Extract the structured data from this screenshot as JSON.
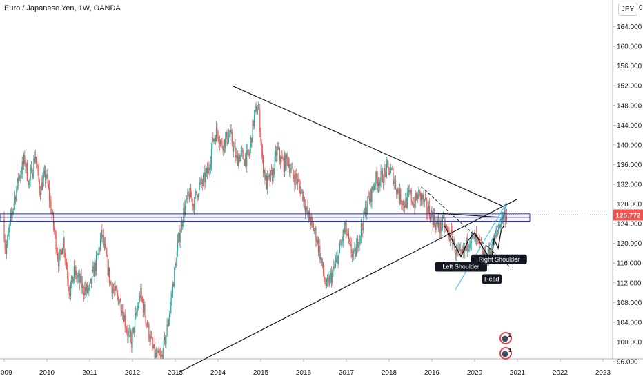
{
  "title": "Euro / Japanese Yen, 1W, OANDA",
  "currency": "JPY",
  "top_tick_fragment": "0",
  "price_label": "125.772",
  "annotation_counts": [
    "2",
    "1"
  ],
  "colors": {
    "up": "#26a69a",
    "down": "#ef5350",
    "zone": "#2a2fbd",
    "trendline": "#131722",
    "pattern_line": "#29b6f6",
    "price_label_bg": "#ef5350"
  },
  "chart_data": {
    "type": "candlestick",
    "title": "Euro / Japanese Yen, 1W, OANDA",
    "xlabel": "",
    "ylabel": "",
    "x_ticks": [
      "009",
      "2010",
      "2011",
      "2012",
      "2013",
      "2014",
      "2015",
      "2016",
      "2017",
      "2018",
      "2019",
      "2020",
      "2021",
      "2022",
      "2023"
    ],
    "y_ticks": [
      "96.000",
      "100.000",
      "104.000",
      "108.000",
      "112.000",
      "116.000",
      "120.000",
      "124.000",
      "128.000",
      "132.000",
      "136.000",
      "140.000",
      "144.000",
      "148.000",
      "152.000",
      "156.000",
      "160.000",
      "164.000"
    ],
    "ylim": [
      96,
      169
    ],
    "last_price": 125.772,
    "price_path": [
      [
        2009.0,
        125
      ],
      [
        2009.05,
        118
      ],
      [
        2009.2,
        126
      ],
      [
        2009.35,
        133
      ],
      [
        2009.5,
        137
      ],
      [
        2009.6,
        132
      ],
      [
        2009.75,
        138
      ],
      [
        2009.85,
        131
      ],
      [
        2010.0,
        134
      ],
      [
        2010.1,
        128
      ],
      [
        2010.2,
        122
      ],
      [
        2010.3,
        116
      ],
      [
        2010.4,
        121
      ],
      [
        2010.55,
        110
      ],
      [
        2010.65,
        114
      ],
      [
        2010.75,
        113
      ],
      [
        2010.85,
        111
      ],
      [
        2011.0,
        110
      ],
      [
        2011.1,
        114
      ],
      [
        2011.2,
        117
      ],
      [
        2011.3,
        122
      ],
      [
        2011.4,
        117
      ],
      [
        2011.5,
        112
      ],
      [
        2011.6,
        110
      ],
      [
        2011.75,
        108
      ],
      [
        2011.9,
        102
      ],
      [
        2012.0,
        100
      ],
      [
        2012.1,
        105
      ],
      [
        2012.2,
        110
      ],
      [
        2012.3,
        106
      ],
      [
        2012.45,
        100
      ],
      [
        2012.55,
        97
      ],
      [
        2012.7,
        96.5
      ],
      [
        2012.8,
        101
      ],
      [
        2012.9,
        107
      ],
      [
        2013.0,
        114
      ],
      [
        2013.1,
        121
      ],
      [
        2013.2,
        126
      ],
      [
        2013.35,
        130
      ],
      [
        2013.45,
        128
      ],
      [
        2013.55,
        131
      ],
      [
        2013.7,
        133
      ],
      [
        2013.8,
        135
      ],
      [
        2013.9,
        141
      ],
      [
        2014.0,
        143
      ],
      [
        2014.1,
        140
      ],
      [
        2014.2,
        141
      ],
      [
        2014.3,
        142
      ],
      [
        2014.45,
        137
      ],
      [
        2014.55,
        138
      ],
      [
        2014.65,
        137
      ],
      [
        2014.75,
        138
      ],
      [
        2014.85,
        145
      ],
      [
        2014.95,
        148
      ],
      [
        2015.0,
        144
      ],
      [
        2015.05,
        137
      ],
      [
        2015.15,
        132
      ],
      [
        2015.3,
        134
      ],
      [
        2015.4,
        139
      ],
      [
        2015.55,
        136
      ],
      [
        2015.65,
        137
      ],
      [
        2015.75,
        134
      ],
      [
        2015.85,
        133
      ],
      [
        2016.0,
        130
      ],
      [
        2016.1,
        126
      ],
      [
        2016.2,
        124
      ],
      [
        2016.3,
        122
      ],
      [
        2016.4,
        118
      ],
      [
        2016.5,
        113
      ],
      [
        2016.55,
        111
      ],
      [
        2016.65,
        113
      ],
      [
        2016.75,
        115
      ],
      [
        2016.85,
        118
      ],
      [
        2016.95,
        122
      ],
      [
        2017.0,
        123
      ],
      [
        2017.1,
        119
      ],
      [
        2017.2,
        117
      ],
      [
        2017.3,
        121
      ],
      [
        2017.4,
        124
      ],
      [
        2017.5,
        128
      ],
      [
        2017.6,
        130
      ],
      [
        2017.7,
        133
      ],
      [
        2017.8,
        133
      ],
      [
        2017.9,
        134
      ],
      [
        2018.0,
        135
      ],
      [
        2018.1,
        134
      ],
      [
        2018.2,
        131
      ],
      [
        2018.3,
        129
      ],
      [
        2018.4,
        128
      ],
      [
        2018.5,
        130
      ],
      [
        2018.6,
        128
      ],
      [
        2018.7,
        130
      ],
      [
        2018.8,
        129
      ],
      [
        2018.9,
        127
      ],
      [
        2019.0,
        126
      ],
      [
        2019.1,
        124
      ],
      [
        2019.2,
        123
      ],
      [
        2019.3,
        124
      ],
      [
        2019.4,
        122
      ],
      [
        2019.5,
        121
      ],
      [
        2019.6,
        118
      ],
      [
        2019.7,
        117
      ],
      [
        2019.8,
        119
      ],
      [
        2019.9,
        121
      ],
      [
        2020.0,
        121
      ],
      [
        2020.1,
        120
      ],
      [
        2020.2,
        118
      ],
      [
        2020.3,
        116.5
      ],
      [
        2020.4,
        119
      ],
      [
        2020.5,
        121
      ],
      [
        2020.6,
        124
      ],
      [
        2020.7,
        126
      ],
      [
        2020.75,
        125.8
      ]
    ],
    "horizontal_zone": [
      124.5,
      126.0
    ],
    "trendlines": [
      {
        "from": [
          2014.33,
          152.0
        ],
        "to": [
          2020.65,
          127.6
        ]
      },
      {
        "from": [
          2013.1,
          93.9
        ],
        "to": [
          2021.0,
          129.0
        ]
      },
      {
        "from": [
          2019.0,
          126.2
        ],
        "to": [
          2020.6,
          125.3
        ]
      },
      {
        "from": [
          2018.75,
          131.5
        ],
        "to": [
          2020.85,
          115.0
        ]
      }
    ],
    "pattern": [
      {
        "label": "Left Shoulder",
        "x": 2019.68,
        "y": 116.8
      },
      {
        "label": "Head",
        "x": 2020.4,
        "y": 114.3
      },
      {
        "label": "Right Shoulder",
        "x": 2020.57,
        "y": 118.3
      }
    ]
  }
}
